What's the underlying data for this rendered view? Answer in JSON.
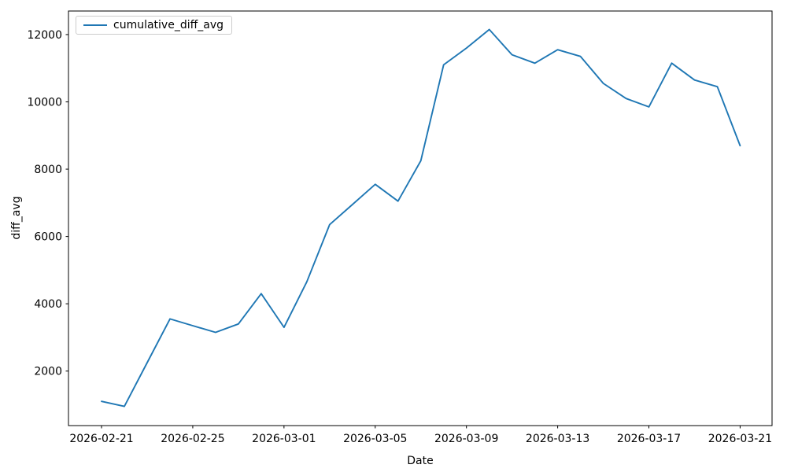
{
  "figure": {
    "background": "#ffffff"
  },
  "chart_data": {
    "type": "line",
    "title": "",
    "xlabel": "Date",
    "ylabel": "diff_avg",
    "grid": false,
    "legend_position": "upper left",
    "line_color": "#1f77b4",
    "x": [
      "2026-02-21",
      "2026-02-22",
      "2026-02-23",
      "2026-02-24",
      "2026-02-25",
      "2026-02-26",
      "2026-02-27",
      "2026-02-28",
      "2026-03-01",
      "2026-03-02",
      "2026-03-03",
      "2026-03-04",
      "2026-03-05",
      "2026-03-06",
      "2026-03-07",
      "2026-03-08",
      "2026-03-09",
      "2026-03-10",
      "2026-03-11",
      "2026-03-12",
      "2026-03-13",
      "2026-03-14",
      "2026-03-15",
      "2026-03-16",
      "2026-03-17",
      "2026-03-18",
      "2026-03-19",
      "2026-03-20",
      "2026-03-21"
    ],
    "series": [
      {
        "name": "cumulative_diff_avg",
        "color": "#1f77b4",
        "values": [
          1100,
          950,
          2250,
          3550,
          3350,
          3150,
          3400,
          4300,
          3300,
          4650,
          6350,
          6950,
          7550,
          7050,
          8250,
          11100,
          11600,
          12150,
          11400,
          11150,
          11550,
          11350,
          10550,
          10100,
          9850,
          11150,
          10650,
          10450,
          8700
        ]
      }
    ],
    "xticks": [
      "2026-02-21",
      "2026-02-25",
      "2026-03-01",
      "2026-03-05",
      "2026-03-09",
      "2026-03-13",
      "2026-03-17",
      "2026-03-21"
    ],
    "yticks": [
      2000,
      4000,
      6000,
      8000,
      10000,
      12000
    ],
    "ylim": [
      380,
      12700
    ],
    "xlim_days": [
      -1.45,
      29.4
    ]
  }
}
